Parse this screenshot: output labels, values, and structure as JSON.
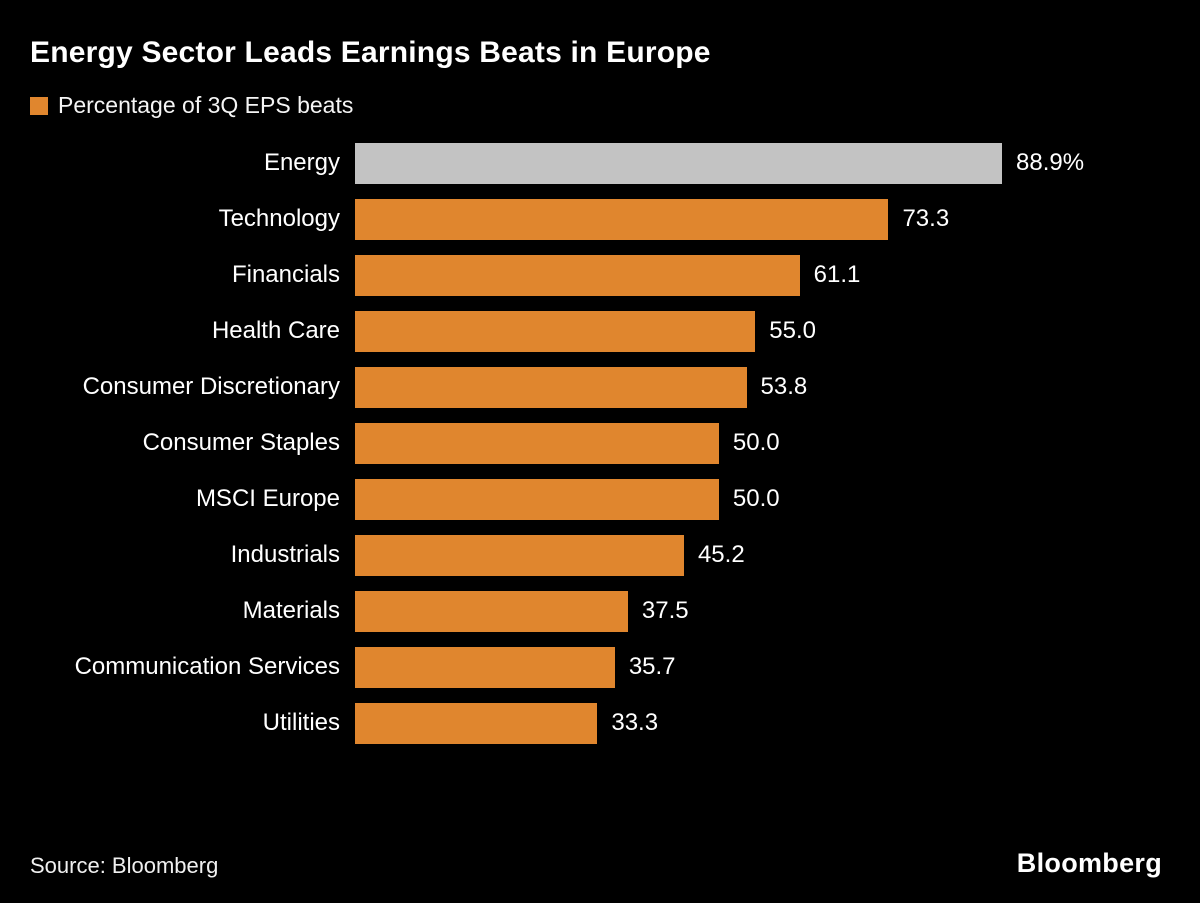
{
  "chart_data": {
    "type": "bar",
    "orientation": "horizontal",
    "title": "Energy Sector Leads Earnings Beats in Europe",
    "legend": "Percentage of 3Q EPS beats",
    "categories": [
      "Energy",
      "Technology",
      "Financials",
      "Health Care",
      "Consumer Discretionary",
      "Consumer Staples",
      "MSCI Europe",
      "Industrials",
      "Materials",
      "Communication Services",
      "Utilities"
    ],
    "values": [
      88.9,
      73.3,
      61.1,
      55.0,
      53.8,
      50.0,
      50.0,
      45.2,
      37.5,
      35.7,
      33.3
    ],
    "value_labels": [
      "88.9%",
      "73.3",
      "61.1",
      "55.0",
      "53.8",
      "50.0",
      "50.0",
      "45.2",
      "37.5",
      "35.7",
      "33.3"
    ],
    "max_value": 88.9,
    "xlim": [
      0,
      88.9
    ],
    "grid": false,
    "colors": {
      "default": "#E0862E",
      "highlight": "#C3C3C3",
      "background": "#000000",
      "text": "#FFFFFF"
    },
    "highlight_index": 0
  },
  "footer": {
    "source": "Source: Bloomberg",
    "logo": "Bloomberg"
  }
}
